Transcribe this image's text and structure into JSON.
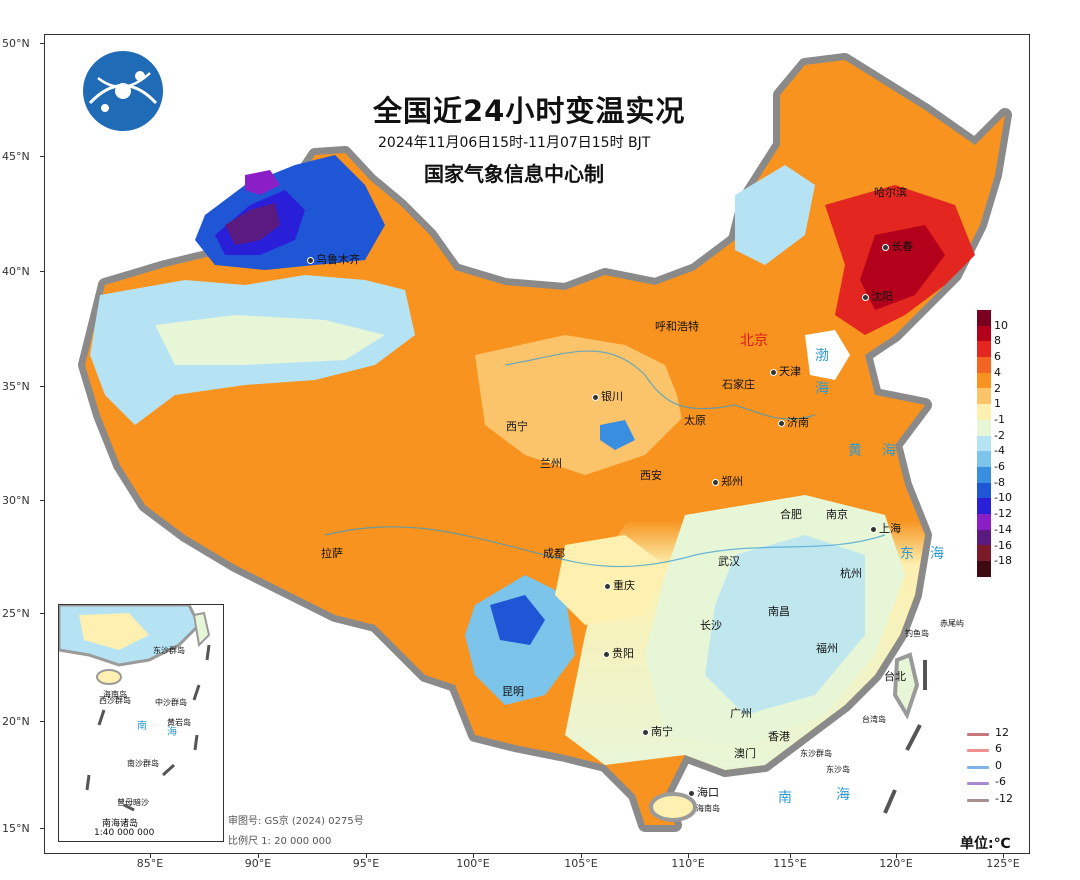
{
  "title": "全国近24小时变温实况",
  "subtitle": "2024年11月06日15时-11月07日15时 BJT",
  "producer": "国家气象信息中心制",
  "latitude_labels": [
    "50°N",
    "45°N",
    "40°N",
    "35°N",
    "30°N",
    "25°N",
    "20°N",
    "15°N"
  ],
  "longitude_labels": [
    "85°E",
    "90°E",
    "95°E",
    "100°E",
    "105°E",
    "110°E",
    "115°E",
    "120°E",
    "125°E"
  ],
  "cities": {
    "urumqi": "乌鲁木齐",
    "harbin": "哈尔滨",
    "changchun": "长春",
    "shenyang": "沈阳",
    "hohhot": "呼和浩特",
    "beijing": "北京",
    "tianjin": "天津",
    "shijiazhuang": "石家庄",
    "yinchuan": "银川",
    "taiyuan": "太原",
    "jinan": "济南",
    "xining": "西宁",
    "lanzhou": "兰州",
    "xian": "西安",
    "zhengzhou": "郑州",
    "hefei": "合肥",
    "nanjing": "南京",
    "shanghai": "上海",
    "lhasa": "拉萨",
    "chengdu": "成都",
    "chongqing": "重庆",
    "wuhan": "武汉",
    "hangzhou": "杭州",
    "changsha": "长沙",
    "nanchang": "南昌",
    "guiyang": "贵阳",
    "fuzhou": "福州",
    "taibei": "台北",
    "kunming": "昆明",
    "nanning": "南宁",
    "guangzhou": "广州",
    "hongkong": "香港",
    "macau": "澳门",
    "haikou": "海口"
  },
  "islands": {
    "diaoyu": "钓鱼岛",
    "chiwei": "赤尾屿",
    "taiwan_island": "台湾岛",
    "dongsha": "东沙群岛",
    "dongsha2": "东沙岛",
    "hainan_island": "海南岛"
  },
  "seas": {
    "bohai_1": "渤",
    "bohai_2": "海",
    "huanghai_1": "黄",
    "huanghai_2": "海",
    "donghai_1": "东",
    "donghai_2": "海",
    "nanhai_1": "南",
    "nanhai_2": "海"
  },
  "legend_labels": [
    "10",
    "8",
    "6",
    "4",
    "2",
    "1",
    "-1",
    "-2",
    "-4",
    "-6",
    "-8",
    "-10",
    "-12",
    "-14",
    "-16",
    "-18"
  ],
  "legend_colors": [
    "#7a0020",
    "#b3001b",
    "#e3261f",
    "#f26522",
    "#f7931e",
    "#fbc46b",
    "#fdf0b0",
    "#e8f6d8",
    "#b6e3f4",
    "#7cc4ea",
    "#3a8ee0",
    "#1f56d6",
    "#2a1fd9",
    "#8a1fc8",
    "#5b1a80",
    "#7d1a2a",
    "#3c0a10"
  ],
  "line_legend": [
    {
      "label": "12",
      "color": "#c7767a"
    },
    {
      "label": "6",
      "color": "#f08f8f"
    },
    {
      "label": "0",
      "color": "#7fb3e8"
    },
    {
      "label": "-6",
      "color": "#a889d3"
    },
    {
      "label": "-12",
      "color": "#a88f90"
    }
  ],
  "unit": "单位:℃",
  "inset": {
    "label": "南海诸岛",
    "scale": "1:40 000 000",
    "places": {
      "xisha": "西沙群岛",
      "zhongsha": "中沙群岛",
      "nansha": "南沙群岛",
      "dongsha": "东沙群岛",
      "hainan": "海南岛",
      "huangyan": "黄岩岛",
      "zengmu": "曾母暗沙",
      "nan": "南",
      "hai": "海"
    }
  },
  "review_number": "审图号: GS京 (2024) 0275号",
  "map_scale": "比例尺 1: 20 000 000"
}
